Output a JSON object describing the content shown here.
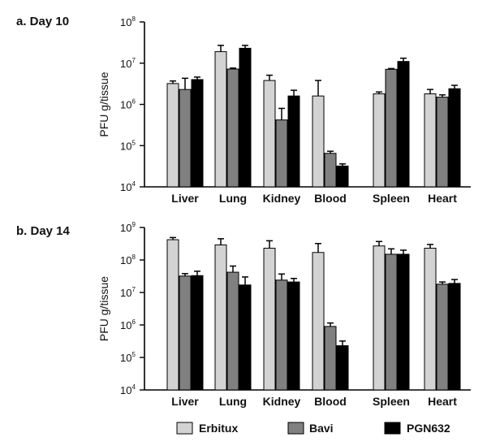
{
  "chart_data": [
    {
      "type": "bar",
      "panel_label": "a.  Day 10",
      "ylabel": "PFU g/tissue",
      "yscale": "log",
      "ylim": [
        10000,
        100000000
      ],
      "ytick_base": "10",
      "ytick_exponents": [
        "4",
        "5",
        "6",
        "7",
        "8"
      ],
      "categories": [
        "Liver",
        "Lung",
        "Kidney",
        "Blood",
        "Spleen",
        "Heart"
      ],
      "series": [
        {
          "name": "Erbitux",
          "color": "#d3d3d3",
          "values": [
            3200000,
            19000000,
            3800000,
            1600000,
            1800000,
            1800000
          ],
          "errors": [
            500000,
            8000000,
            1300000,
            2200000,
            200000,
            500000
          ]
        },
        {
          "name": "Bavi",
          "color": "#808080",
          "values": [
            2300000,
            7200000,
            420000,
            65000,
            7100000,
            1500000
          ],
          "errors": [
            2000000,
            400000,
            380000,
            8000,
            300000,
            200000
          ]
        },
        {
          "name": "PGN632",
          "color": "#000000",
          "values": [
            4000000,
            23000000,
            1600000,
            32000,
            11000000,
            2400000
          ],
          "errors": [
            600000,
            4000000,
            600000,
            4000,
            2200000,
            500000
          ]
        }
      ]
    },
    {
      "type": "bar",
      "panel_label": "b.  Day 14",
      "ylabel": "PFU g/tissue",
      "yscale": "log",
      "ylim": [
        10000,
        1000000000
      ],
      "ytick_base": "10",
      "ytick_exponents": [
        "4",
        "5",
        "6",
        "7",
        "8",
        "9"
      ],
      "categories": [
        "Liver",
        "Lung",
        "Kidney",
        "Blood",
        "Spleen",
        "Heart"
      ],
      "series": [
        {
          "name": "Erbitux",
          "color": "#d3d3d3",
          "values": [
            420000000,
            290000000,
            230000000,
            170000000,
            270000000,
            230000000
          ],
          "errors": [
            70000000,
            160000000,
            160000000,
            150000000,
            100000000,
            70000000
          ]
        },
        {
          "name": "Bavi",
          "color": "#808080",
          "values": [
            32000000,
            42000000,
            24000000,
            900000,
            150000000,
            18000000
          ],
          "errors": [
            6000000,
            23000000,
            13000000,
            250000,
            70000000,
            3000000
          ]
        },
        {
          "name": "PGN632",
          "color": "#000000",
          "values": [
            33000000,
            17000000,
            21000000,
            230000,
            150000000,
            19000000
          ],
          "errors": [
            12000000,
            13000000,
            6000000,
            90000,
            50000000,
            6000000
          ]
        }
      ]
    }
  ],
  "legend": {
    "items": [
      {
        "label": "Erbitux",
        "color": "#d3d3d3"
      },
      {
        "label": "Bavi",
        "color": "#808080"
      },
      {
        "label": "PGN632",
        "color": "#000000"
      }
    ]
  }
}
